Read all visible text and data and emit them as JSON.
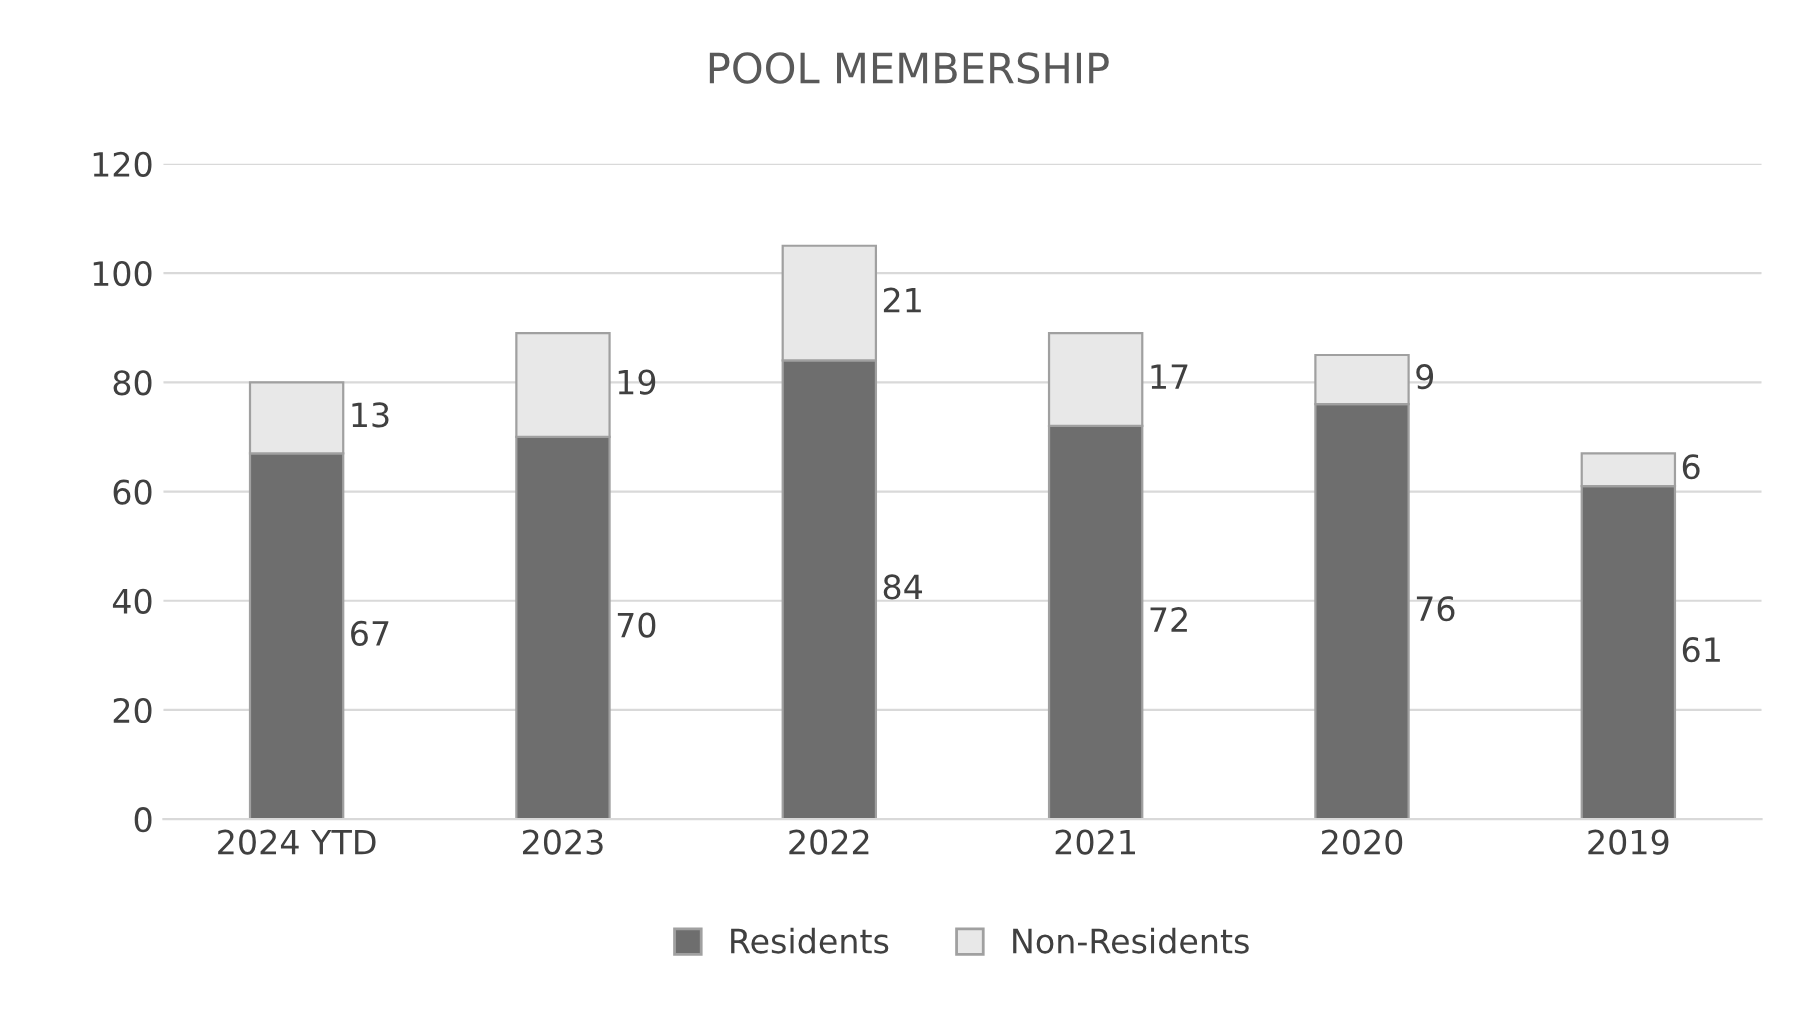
{
  "chart_data": {
    "type": "bar",
    "title": "POOL MEMBERSHIP",
    "categories": [
      "2024 YTD",
      "2023",
      "2022",
      "2021",
      "2020",
      "2019"
    ],
    "stacked": true,
    "series": [
      {
        "name": "Residents",
        "color": "#6e6e6e",
        "values": [
          67,
          70,
          84,
          72,
          76,
          61
        ]
      },
      {
        "name": "Non-Residents",
        "color": "#e8e8e8",
        "values": [
          13,
          19,
          21,
          17,
          9,
          6
        ]
      }
    ],
    "ylim": [
      0,
      120
    ],
    "yticks": [
      0,
      20,
      40,
      60,
      80,
      100,
      120
    ],
    "grid": "y",
    "legend": "bottom",
    "data_labels": true
  }
}
